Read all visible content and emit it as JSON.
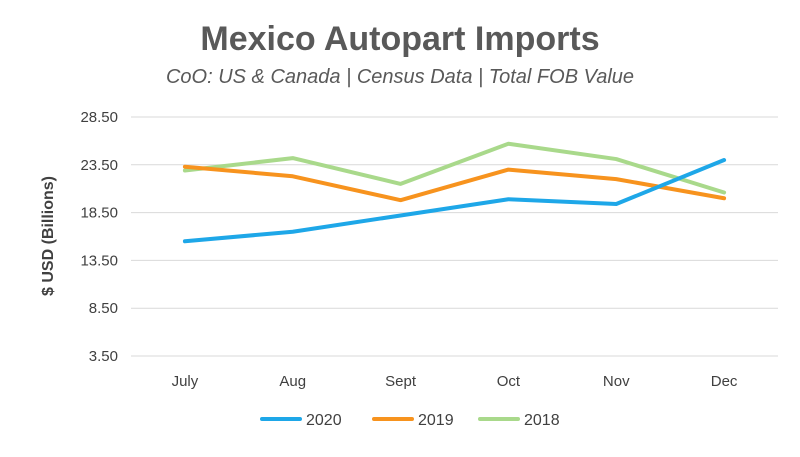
{
  "chart_data": {
    "type": "line",
    "title": "Mexico Autopart Imports",
    "subtitle": "CoO: US & Canada | Census Data | Total FOB Value",
    "xlabel": "",
    "ylabel": "$ USD (Billions)",
    "categories": [
      "July",
      "Aug",
      "Sept",
      "Oct",
      "Nov",
      "Dec"
    ],
    "y_ticks": [
      "3.50",
      "8.50",
      "13.50",
      "18.50",
      "23.50",
      "28.50"
    ],
    "ylim": [
      3.5,
      28.5
    ],
    "grid": true,
    "legend_position": "bottom",
    "series": [
      {
        "name": "2020",
        "color": "#1EA7E8",
        "values": [
          15.5,
          16.5,
          18.2,
          19.9,
          19.4,
          24.0
        ]
      },
      {
        "name": "2019",
        "color": "#F7931E",
        "values": [
          23.3,
          22.3,
          19.8,
          23.0,
          22.0,
          20.0
        ]
      },
      {
        "name": "2018",
        "color": "#A9D98B",
        "values": [
          22.9,
          24.2,
          21.5,
          25.7,
          24.1,
          20.6
        ]
      }
    ]
  }
}
